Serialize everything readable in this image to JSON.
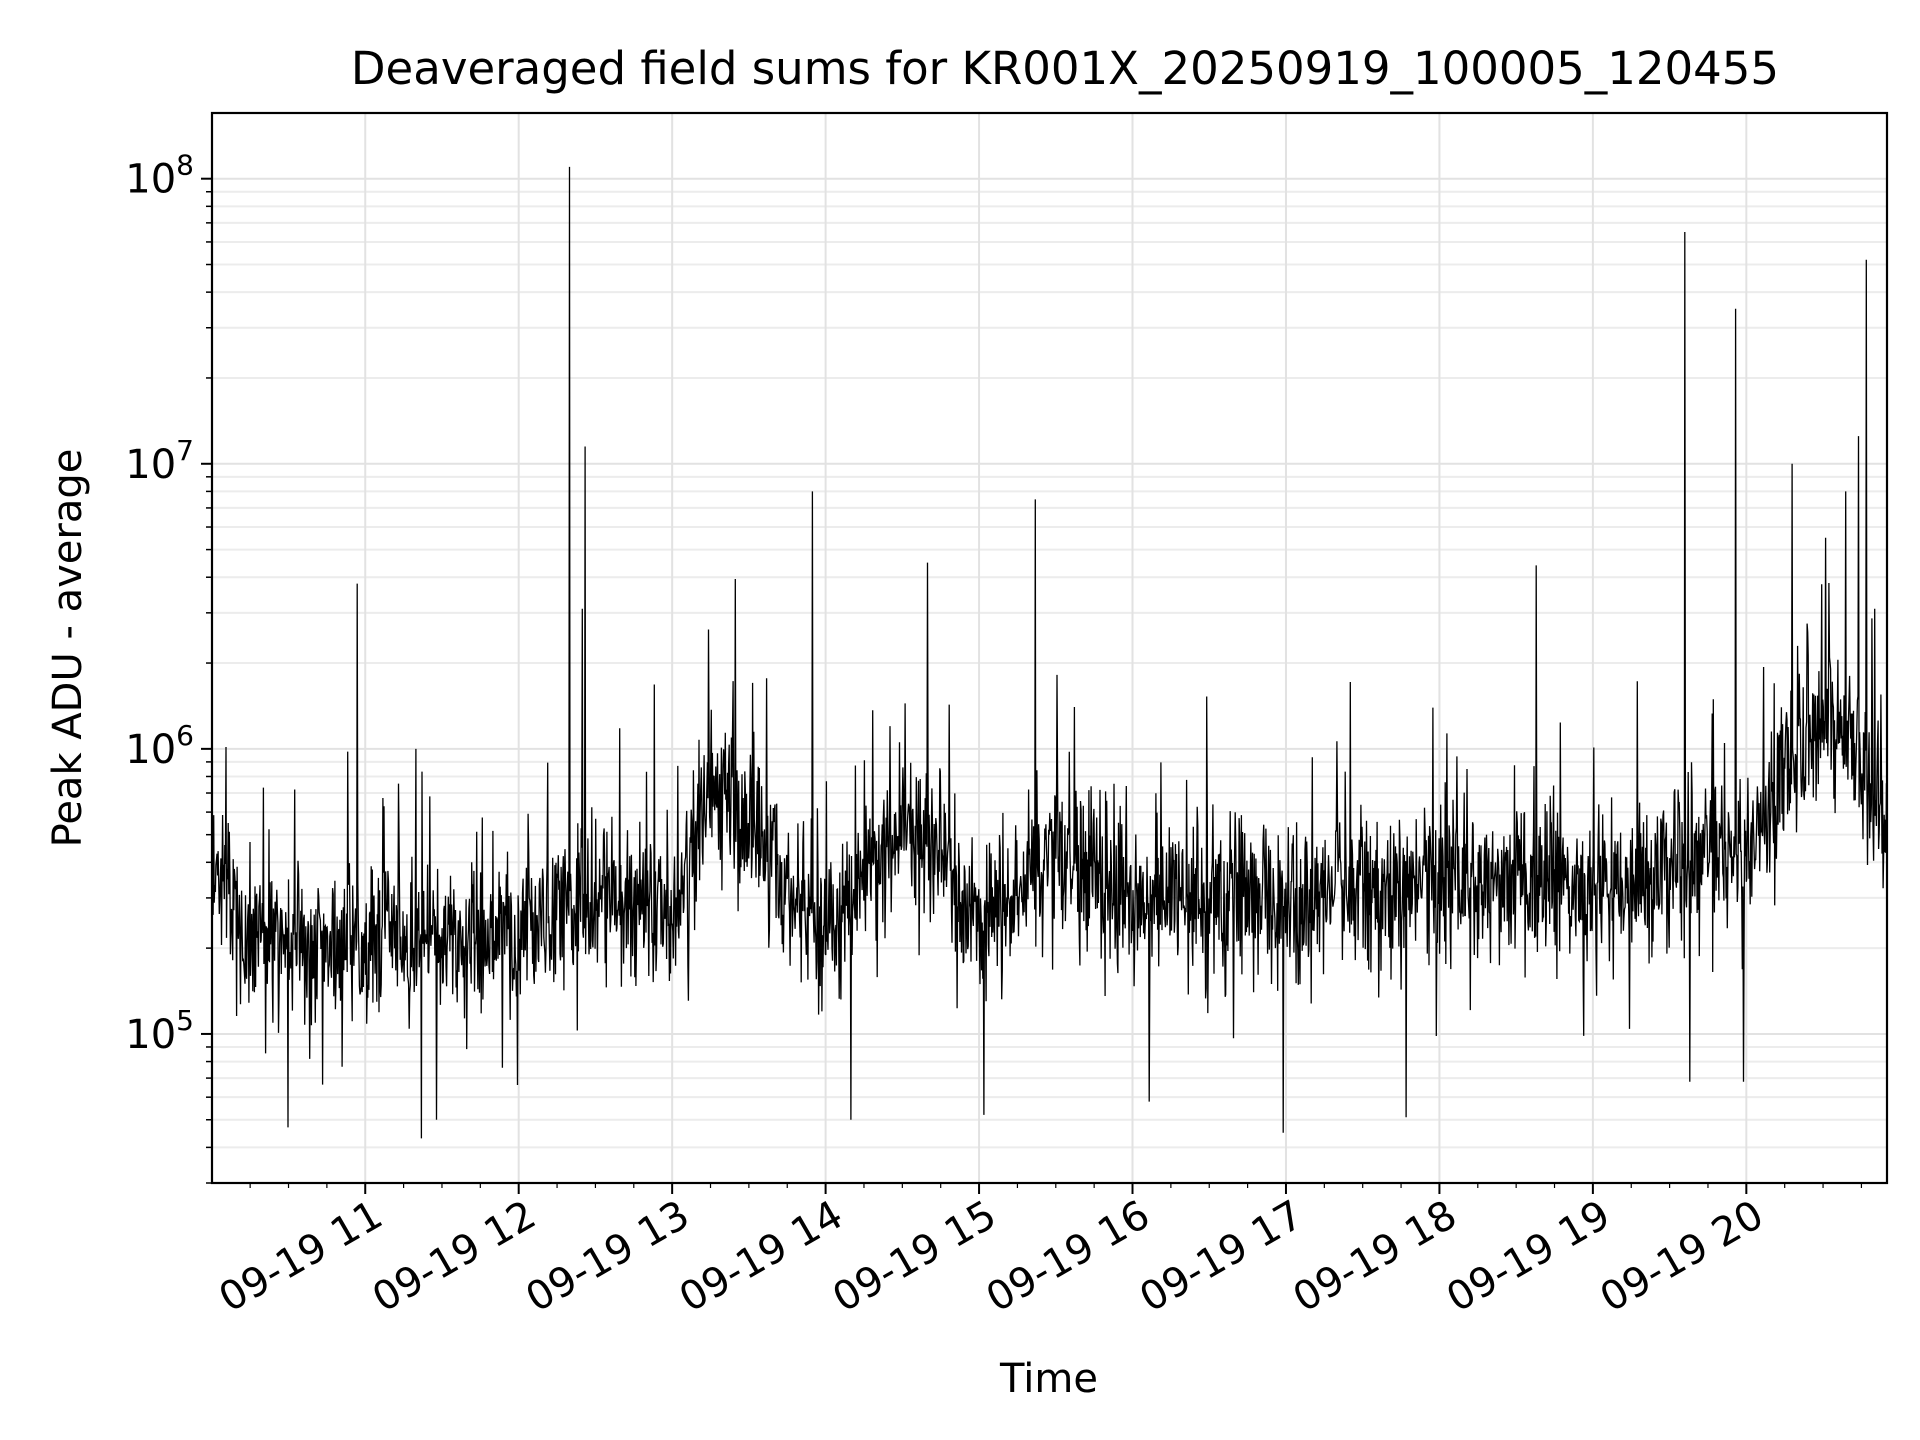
{
  "chart_data": {
    "type": "line",
    "title": "Deaveraged field sums for KR001X_20250919_100005_120455",
    "xlabel": "Time",
    "ylabel": "Peak ADU - average",
    "y_scale": "log",
    "grid": true,
    "grid_minor": true,
    "x_range": [
      "2025-09-19 10:00:05",
      "2025-09-19 20:55:00"
    ],
    "ylim": [
      30000,
      170000000
    ],
    "x_ticks": [
      {
        "t": "2025-09-19 11:00",
        "label": "09-19 11"
      },
      {
        "t": "2025-09-19 12:00",
        "label": "09-19 12"
      },
      {
        "t": "2025-09-19 13:00",
        "label": "09-19 13"
      },
      {
        "t": "2025-09-19 14:00",
        "label": "09-19 14"
      },
      {
        "t": "2025-09-19 15:00",
        "label": "09-19 15"
      },
      {
        "t": "2025-09-19 16:00",
        "label": "09-19 16"
      },
      {
        "t": "2025-09-19 17:00",
        "label": "09-19 17"
      },
      {
        "t": "2025-09-19 18:00",
        "label": "09-19 18"
      },
      {
        "t": "2025-09-19 19:00",
        "label": "09-19 19"
      },
      {
        "t": "2025-09-19 20:00",
        "label": "09-19 20"
      }
    ],
    "y_ticks": [
      {
        "value": 100000,
        "base": "10",
        "exp": "5"
      },
      {
        "value": 1000000,
        "base": "10",
        "exp": "6"
      },
      {
        "value": 10000000,
        "base": "10",
        "exp": "7"
      },
      {
        "value": 100000000,
        "base": "10",
        "exp": "8"
      }
    ],
    "line_color": "#000000",
    "baseline": [
      {
        "t": "2025-09-19 10:00",
        "v": 400000
      },
      {
        "t": "2025-09-19 10:15",
        "v": 220000
      },
      {
        "t": "2025-09-19 11:00",
        "v": 210000
      },
      {
        "t": "2025-09-19 11:30",
        "v": 220000
      },
      {
        "t": "2025-09-19 12:00",
        "v": 230000
      },
      {
        "t": "2025-09-19 12:30",
        "v": 300000
      },
      {
        "t": "2025-09-19 13:00",
        "v": 250000
      },
      {
        "t": "2025-09-19 13:15",
        "v": 750000
      },
      {
        "t": "2025-09-19 13:30",
        "v": 550000
      },
      {
        "t": "2025-09-19 14:00",
        "v": 230000
      },
      {
        "t": "2025-09-19 14:30",
        "v": 550000
      },
      {
        "t": "2025-09-19 14:45",
        "v": 450000
      },
      {
        "t": "2025-09-19 15:00",
        "v": 230000
      },
      {
        "t": "2025-09-19 15:30",
        "v": 450000
      },
      {
        "t": "2025-09-19 16:00",
        "v": 300000
      },
      {
        "t": "2025-09-19 17:00",
        "v": 300000
      },
      {
        "t": "2025-09-19 18:00",
        "v": 350000
      },
      {
        "t": "2025-09-19 19:00",
        "v": 330000
      },
      {
        "t": "2025-09-19 20:00",
        "v": 450000
      },
      {
        "t": "2025-09-19 20:30",
        "v": 1400000
      },
      {
        "t": "2025-09-19 20:45",
        "v": 900000
      },
      {
        "t": "2025-09-19 20:55",
        "v": 500000
      }
    ],
    "spikes": [
      {
        "t": "2025-09-19 10:57",
        "v": 3800000
      },
      {
        "t": "2025-09-19 11:20",
        "v": 1000000
      },
      {
        "t": "2025-09-19 12:20",
        "v": 110000000
      },
      {
        "t": "2025-09-19 12:25",
        "v": 3100000
      },
      {
        "t": "2025-09-19 12:26",
        "v": 11500000
      },
      {
        "t": "2025-09-19 13:55",
        "v": 8000000
      },
      {
        "t": "2025-09-19 14:40",
        "v": 4500000
      },
      {
        "t": "2025-09-19 15:22",
        "v": 7500000
      },
      {
        "t": "2025-09-19 18:38",
        "v": 4400000
      },
      {
        "t": "2025-09-19 19:36",
        "v": 65000000
      },
      {
        "t": "2025-09-19 19:56",
        "v": 35000000
      },
      {
        "t": "2025-09-19 20:18",
        "v": 10000000
      },
      {
        "t": "2025-09-19 20:31",
        "v": 5500000
      },
      {
        "t": "2025-09-19 20:39",
        "v": 8000000
      },
      {
        "t": "2025-09-19 20:44",
        "v": 12500000
      },
      {
        "t": "2025-09-19 20:47",
        "v": 52000000
      }
    ],
    "dips": [
      {
        "t": "2025-09-19 10:30",
        "v": 47000
      },
      {
        "t": "2025-09-19 11:22",
        "v": 43000
      },
      {
        "t": "2025-09-19 11:28",
        "v": 50000
      },
      {
        "t": "2025-09-19 14:10",
        "v": 50000
      },
      {
        "t": "2025-09-19 15:02",
        "v": 52000
      },
      {
        "t": "2025-09-19 16:59",
        "v": 45000
      },
      {
        "t": "2025-09-19 17:47",
        "v": 51000
      },
      {
        "t": "2025-09-19 19:38",
        "v": 68000
      },
      {
        "t": "2025-09-19 19:59",
        "v": 68000
      }
    ]
  }
}
